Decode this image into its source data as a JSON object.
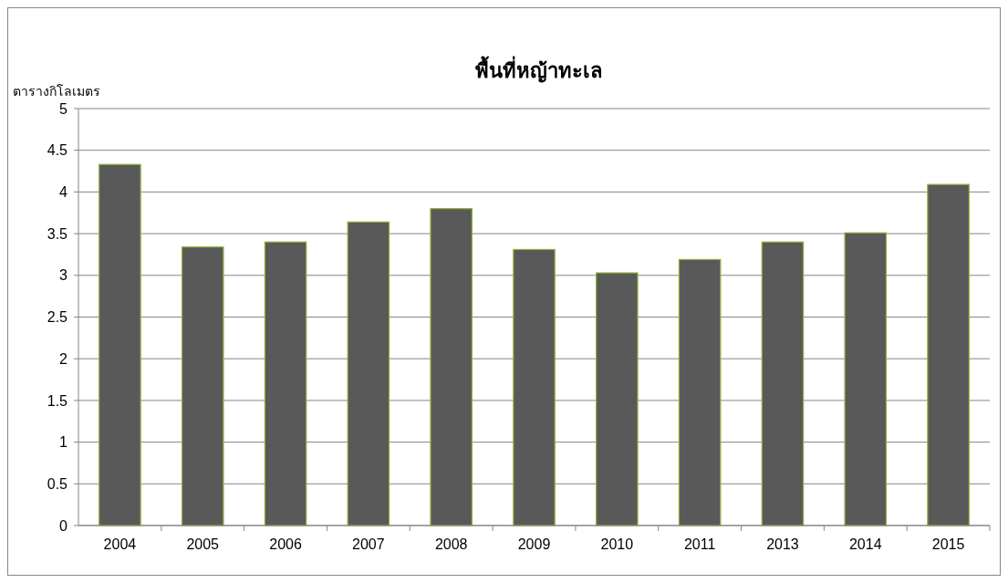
{
  "chart_data": {
    "type": "bar",
    "title": "พื้นที่หญ้าทะเล",
    "ylabel": "ตารางกิโลเมตร",
    "categories": [
      "2004",
      "2005",
      "2006",
      "2007",
      "2008",
      "2009",
      "2010",
      "2011",
      "2013",
      "2014",
      "2015"
    ],
    "values": [
      4.33,
      3.34,
      3.4,
      3.64,
      3.8,
      3.31,
      3.03,
      3.19,
      3.4,
      3.51,
      4.09
    ],
    "color": "#595959",
    "ylim": [
      0,
      5
    ],
    "yticks": [
      0,
      0.5,
      1,
      1.5,
      2,
      2.5,
      3,
      3.5,
      4,
      4.5,
      5
    ],
    "grid": "y"
  }
}
